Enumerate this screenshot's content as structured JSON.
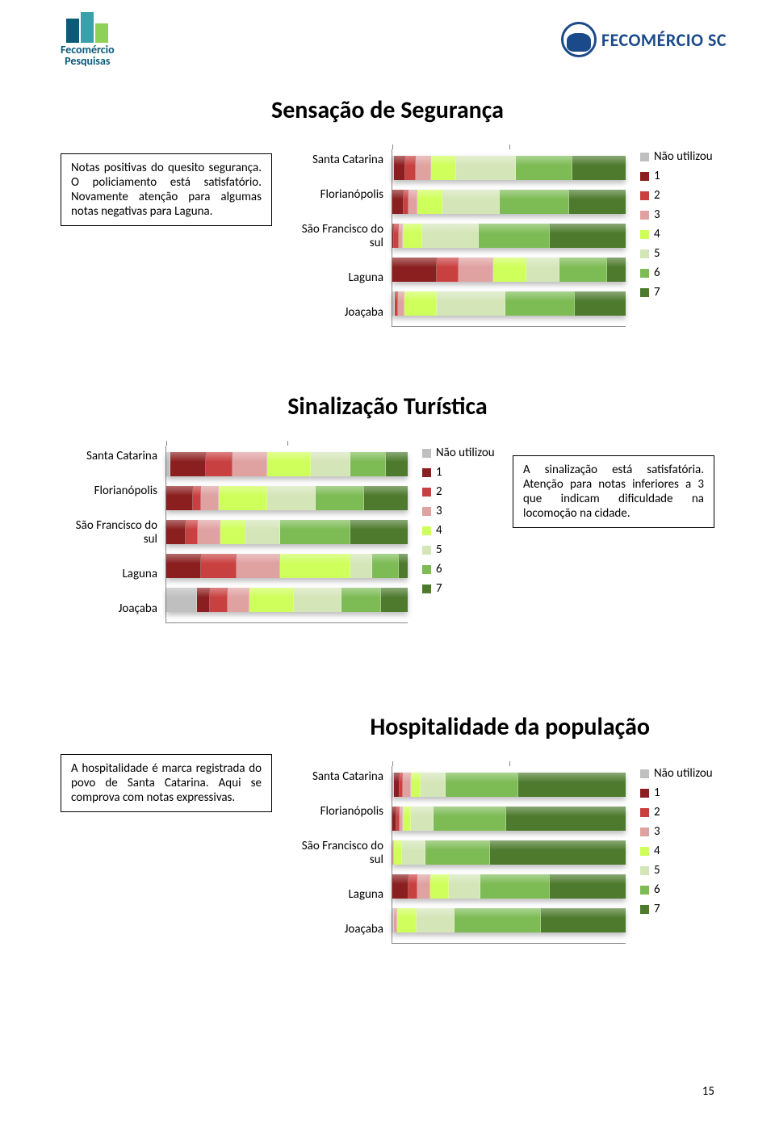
{
  "logos": {
    "left_line1": "Fecomércio",
    "left_line2": "Pesquisas",
    "right_text": "FECOMÉRCIO SC"
  },
  "page_number": "15",
  "legend_labels": [
    "Não utilizou",
    "1",
    "2",
    "3",
    "4",
    "5",
    "6",
    "7"
  ],
  "legend_colors": [
    "#bfbfbf",
    "#8b1e1e",
    "#c94040",
    "#e0a1a1",
    "#cfff5a",
    "#d4e6b8",
    "#7dbb55",
    "#4d7a2d"
  ],
  "categories": [
    "Santa Catarina",
    "Florianópolis",
    "São Francisco do sul",
    "Laguna",
    "Joaçaba"
  ],
  "charts": [
    {
      "title": "Sensação de Segurança",
      "note": "Notas positivas do quesito segurança. O policiamento está satisfatório. Novamente atenção para algumas notas negativas para Laguna.",
      "note_side": "left",
      "plot_width_scale": "narrow",
      "rows": [
        {
          "total": 370,
          "segs": [
            3,
            18,
            16,
            24,
            40,
            95,
            90,
            84
          ]
        },
        {
          "total": 370,
          "segs": [
            0,
            18,
            8,
            14,
            40,
            90,
            110,
            90
          ]
        },
        {
          "total": 370,
          "segs": [
            0,
            3,
            7,
            7,
            30,
            90,
            113,
            120
          ]
        },
        {
          "total": 370,
          "segs": [
            0,
            70,
            35,
            55,
            52,
            53,
            75,
            30
          ]
        },
        {
          "total": 370,
          "segs": [
            4,
            0,
            5,
            10,
            52,
            108,
            111,
            80
          ]
        }
      ]
    },
    {
      "title": "Sinalização Turística",
      "note": "A sinalização está satisfatória. Atenção para notas inferiores a 3 que indicam dificuldade na locomoção na cidade.",
      "note_side": "right",
      "plot_width_scale": "narrow",
      "rows": [
        {
          "total": 275,
          "segs": [
            5,
            40,
            30,
            40,
            50,
            45,
            40,
            25
          ]
        },
        {
          "total": 275,
          "segs": [
            0,
            30,
            10,
            20,
            55,
            55,
            55,
            50
          ]
        },
        {
          "total": 275,
          "segs": [
            0,
            22,
            14,
            26,
            28,
            40,
            80,
            65
          ]
        },
        {
          "total": 275,
          "segs": [
            0,
            40,
            40,
            50,
            80,
            25,
            30,
            10
          ]
        },
        {
          "total": 275,
          "segs": [
            35,
            15,
            20,
            25,
            50,
            55,
            45,
            30
          ]
        }
      ]
    },
    {
      "title": "Hospitalidade da população",
      "note": "A hospitalidade é marca registrada do povo de Santa Catarina. Aqui se comprova com notas expressivas.",
      "note_side": "left",
      "plot_width_scale": "narrow",
      "rows": [
        {
          "total": 370,
          "segs": [
            3,
            8,
            6,
            12,
            16,
            40,
            115,
            170
          ]
        },
        {
          "total": 370,
          "segs": [
            0,
            6,
            6,
            5,
            12,
            36,
            115,
            190
          ]
        },
        {
          "total": 370,
          "segs": [
            0,
            0,
            0,
            3,
            13,
            37,
            102,
            215
          ]
        },
        {
          "total": 370,
          "segs": [
            0,
            25,
            15,
            20,
            30,
            50,
            110,
            120
          ]
        },
        {
          "total": 370,
          "segs": [
            3,
            0,
            0,
            5,
            30,
            60,
            137,
            135
          ]
        }
      ]
    }
  ]
}
